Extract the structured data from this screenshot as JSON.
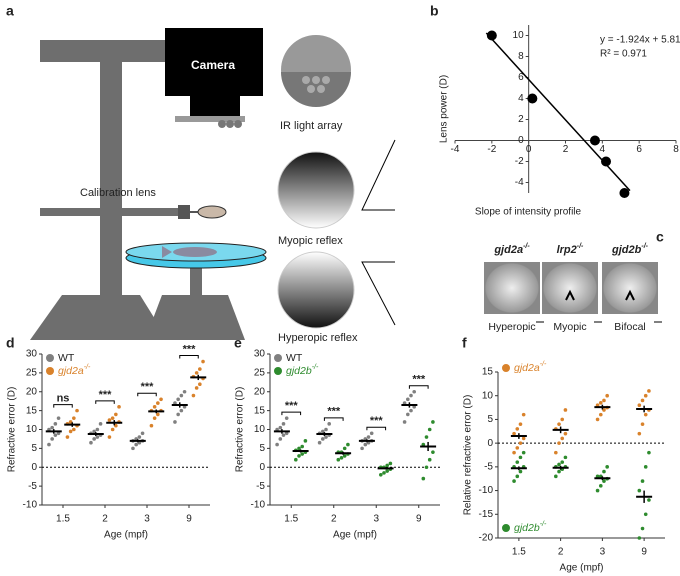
{
  "panel_letters": [
    "a",
    "b",
    "c",
    "d",
    "e",
    "f"
  ],
  "setup_diagram": {
    "camera": "Camera",
    "ir_array": "IR light array",
    "calibration_lens": "Calibration lens",
    "myopic": "Myopic reflex",
    "hyperopic": "Hyperopic reflex"
  },
  "phenotypes": [
    {
      "gene": "gjd2a",
      "genotype": "-/-",
      "reflex": "Hyperopic"
    },
    {
      "gene": "lrp2",
      "genotype": "-/-",
      "reflex": "Myopic"
    },
    {
      "gene": "gjd2b",
      "genotype": "-/-",
      "reflex": "Bifocal"
    }
  ],
  "chart_data": [
    {
      "type": "scatter",
      "xlabel": "Slope of intensity profile",
      "ylabel": "Lens power (D)",
      "x": [
        -2,
        0.2,
        3.6,
        4.2,
        5.2
      ],
      "values": [
        10,
        4,
        0,
        -2,
        -5
      ],
      "color": "#000000",
      "xlim": [
        -4,
        8
      ],
      "ylim": [
        -5,
        11
      ],
      "xticks": [
        -4,
        -2,
        0,
        2,
        4,
        6,
        8
      ],
      "yticks": [
        -4,
        -2,
        0,
        2,
        4,
        6,
        8,
        10
      ],
      "fit": {
        "slope": -1.924,
        "intercept": 5.81
      },
      "annotations": [
        "y = -1.924x + 5.81",
        "R² = 0.971"
      ]
    },
    {
      "type": "dot",
      "xlabel": "Age (mpf)",
      "ylabel": "Refractive error (D)",
      "categories": [
        "1.5",
        "2",
        "3",
        "9"
      ],
      "ylim": [
        -10,
        30
      ],
      "yticks": [
        -10,
        -5,
        0,
        5,
        10,
        15,
        20,
        25,
        30
      ],
      "reference_line": 0,
      "legend": "upper left",
      "significance": [
        "ns",
        "***",
        "***",
        "***"
      ],
      "series": [
        {
          "name": "WT",
          "color": "#808080",
          "values": [
            9.5,
            8.8,
            7,
            16.5
          ],
          "errors": [
            0.6,
            0.5,
            0.4,
            0.7
          ],
          "points": [
            [
              6,
              7.5,
              8.5,
              9,
              10,
              10.5,
              11.5,
              13
            ],
            [
              6.5,
              7.5,
              8,
              8.5,
              9,
              9.5,
              10,
              11.5
            ],
            [
              5,
              6,
              6.5,
              7,
              7,
              7.5,
              8,
              9
            ],
            [
              12,
              14,
              15,
              16,
              17,
              18,
              19,
              20
            ]
          ]
        },
        {
          "name": "gjd2a",
          "name_superscript": "-/-",
          "color": "#d9822b",
          "values": [
            11.3,
            11.8,
            14.8,
            23.8
          ],
          "errors": [
            0.6,
            0.7,
            0.5,
            0.7
          ],
          "points": [
            [
              8,
              9.5,
              10,
              11,
              11.5,
              12,
              13,
              15
            ],
            [
              8,
              10,
              11,
              12,
              12.5,
              13,
              14,
              16
            ],
            [
              11,
              13,
              14,
              15,
              15,
              16,
              17,
              18
            ],
            [
              19,
              21,
              22,
              23.5,
              24,
              25,
              26,
              28
            ]
          ]
        }
      ]
    },
    {
      "type": "dot",
      "xlabel": "Age (mpf)",
      "ylabel": "Refractive error (D)",
      "categories": [
        "1.5",
        "2",
        "3",
        "9"
      ],
      "ylim": [
        -10,
        30
      ],
      "yticks": [
        -10,
        -5,
        0,
        5,
        10,
        15,
        20,
        25,
        30
      ],
      "reference_line": 0,
      "legend": "upper left",
      "significance": [
        "***",
        "***",
        "***",
        "***"
      ],
      "series": [
        {
          "name": "WT",
          "color": "#808080",
          "values": [
            9.5,
            8.8,
            7,
            16.5
          ],
          "errors": [
            0.6,
            0.5,
            0.4,
            0.7
          ],
          "points": [
            [
              6,
              7.5,
              8.5,
              9,
              10,
              10.5,
              11.5,
              13
            ],
            [
              6.5,
              7.5,
              8,
              8.5,
              9,
              9.5,
              10,
              11.5
            ],
            [
              5,
              6,
              6.5,
              7,
              7,
              7.5,
              8,
              9
            ],
            [
              12,
              14,
              15,
              16,
              17,
              18,
              19,
              20
            ]
          ]
        },
        {
          "name": "gjd2b",
          "name_superscript": "-/-",
          "color": "#2e8b2e",
          "values": [
            4.3,
            3.7,
            -0.3,
            5.5
          ],
          "errors": [
            0.4,
            0.4,
            0.3,
            1.2
          ],
          "points": [
            [
              2,
              3,
              3.5,
              4,
              4.5,
              5,
              5.5,
              7
            ],
            [
              2,
              2.5,
              3,
              3.5,
              4,
              4,
              5,
              6
            ],
            [
              -2,
              -1.5,
              -1,
              -0.5,
              0,
              0,
              0.5,
              1
            ],
            [
              -3,
              0,
              2,
              4,
              6,
              8,
              10,
              12
            ]
          ]
        }
      ]
    },
    {
      "type": "dot",
      "xlabel": "Age (mpf)",
      "ylabel": "Relative refractive error (D)",
      "categories": [
        "1.5",
        "2",
        "3",
        "9"
      ],
      "ylim": [
        -20,
        15
      ],
      "yticks": [
        -20,
        -15,
        -10,
        -5,
        0,
        5,
        10,
        15
      ],
      "reference_line": 0,
      "legend": "split",
      "series": [
        {
          "name": "gjd2a",
          "name_superscript": "-/-",
          "color": "#d9822b",
          "values": [
            1.5,
            2.8,
            7.6,
            7.2
          ],
          "errors": [
            0.6,
            0.7,
            0.5,
            0.7
          ],
          "points": [
            [
              -2,
              -1,
              0,
              1,
              2,
              3,
              4,
              6
            ],
            [
              -2,
              0,
              1,
              2,
              3,
              4,
              5,
              7
            ],
            [
              5,
              6,
              7,
              7.5,
              8,
              8.5,
              9,
              10
            ],
            [
              2,
              4,
              6,
              7,
              8,
              9,
              10,
              11
            ]
          ]
        },
        {
          "name": "gjd2b",
          "name_superscript": "-/-",
          "color": "#2e8b2e",
          "values": [
            -5.3,
            -5.2,
            -7.4,
            -11.3
          ],
          "errors": [
            0.4,
            0.4,
            0.4,
            1.3
          ],
          "points": [
            [
              -8,
              -7,
              -6,
              -5,
              -5,
              -4,
              -3,
              -2
            ],
            [
              -7,
              -6,
              -5.5,
              -5,
              -5,
              -4.5,
              -4,
              -3
            ],
            [
              -10,
              -9,
              -8,
              -7.5,
              -7,
              -7,
              -6,
              -5
            ],
            [
              -20,
              -18,
              -15,
              -12,
              -10,
              -8,
              -5,
              -2
            ]
          ]
        }
      ]
    }
  ]
}
